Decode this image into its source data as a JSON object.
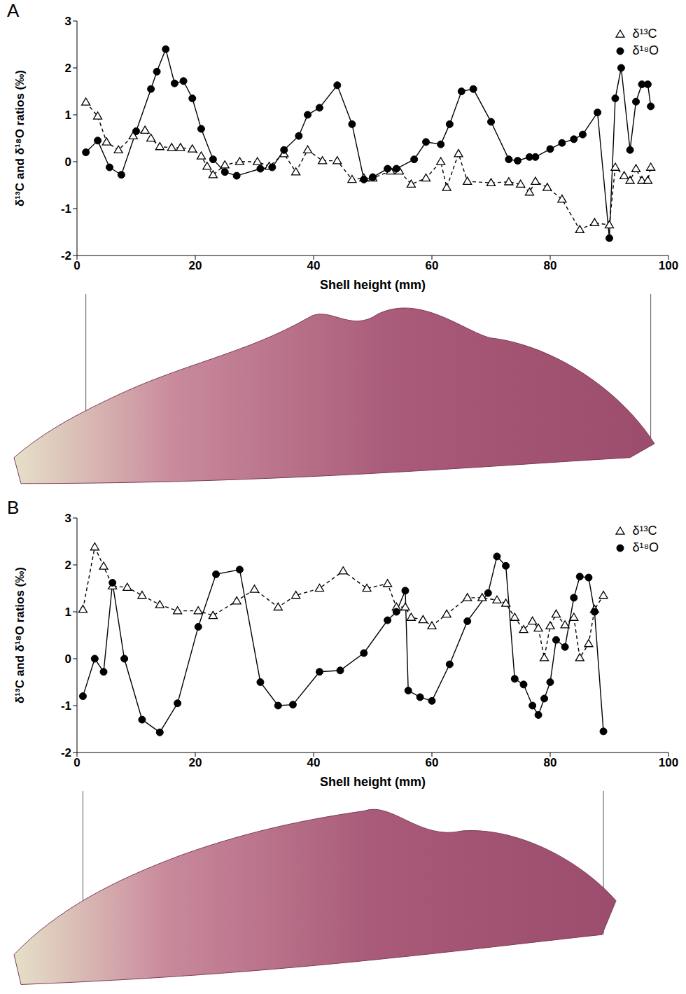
{
  "chart_data": [
    {
      "type": "line",
      "panel": "A",
      "x_label": "Shell height (mm)",
      "y_label": "δ¹³C and δ¹⁸O ratios (‰)",
      "xlim": [
        0,
        100
      ],
      "xticks": [
        0,
        20,
        40,
        60,
        80,
        100
      ],
      "ylim": [
        -2,
        3
      ],
      "yticks": [
        -2,
        -1,
        0,
        1,
        2,
        3
      ],
      "legend": "upper right",
      "series": [
        {
          "name": "δ¹³C",
          "color": "#000000",
          "marker": "open_triangle",
          "line_style": "dashed",
          "x": [
            1.5,
            3.5,
            5,
            7,
            9.5,
            11.5,
            12.5,
            14,
            16,
            17.5,
            19.5,
            21,
            22,
            23,
            25,
            27.5,
            30.5,
            32.5,
            35,
            37,
            39,
            41.5,
            44,
            46.5,
            48.5,
            50,
            53,
            54.5,
            56.5,
            59,
            61.5,
            62.5,
            64.5,
            66,
            70,
            73,
            75,
            76.5,
            77.5,
            79.5,
            82,
            85,
            87.5,
            90,
            91,
            92.5,
            93.5,
            94.5,
            95.5,
            96.5,
            97
          ],
          "values": [
            1.27,
            0.97,
            0.42,
            0.25,
            0.55,
            0.67,
            0.5,
            0.32,
            0.3,
            0.3,
            0.27,
            0.12,
            -0.1,
            -0.28,
            -0.07,
            0.0,
            0.0,
            -0.1,
            0.17,
            -0.22,
            0.25,
            0.02,
            0.02,
            -0.38,
            -0.35,
            -0.35,
            -0.2,
            -0.2,
            -0.48,
            -0.35,
            0.0,
            -0.55,
            0.17,
            -0.42,
            -0.45,
            -0.43,
            -0.48,
            -0.65,
            -0.42,
            -0.55,
            -0.8,
            -1.45,
            -1.3,
            -1.35,
            -0.12,
            -0.3,
            -0.4,
            -0.15,
            -0.4,
            -0.4,
            -0.12
          ]
        },
        {
          "name": "δ¹⁸O",
          "color": "#000000",
          "marker": "circle",
          "line_style": "solid",
          "x": [
            1.5,
            3.5,
            5.5,
            7.5,
            10,
            12.5,
            13.5,
            15,
            16.5,
            18,
            19.5,
            21,
            23,
            25,
            27,
            31,
            33,
            35,
            37.5,
            39,
            41,
            44,
            46.5,
            48.5,
            50,
            52.5,
            54,
            57,
            59,
            61.5,
            63,
            65,
            67,
            70,
            73,
            74.5,
            76.5,
            77.5,
            80,
            82,
            84,
            85.5,
            88,
            90,
            91,
            92,
            93.5,
            94.5,
            95.5,
            96.5,
            97
          ],
          "values": [
            0.2,
            0.45,
            -0.12,
            -0.28,
            0.65,
            1.55,
            1.92,
            2.4,
            1.67,
            1.72,
            1.35,
            0.7,
            0.05,
            -0.22,
            -0.3,
            -0.15,
            -0.12,
            0.25,
            0.55,
            1.0,
            1.15,
            1.63,
            0.8,
            -0.38,
            -0.33,
            -0.15,
            -0.15,
            0.05,
            0.42,
            0.37,
            0.8,
            1.5,
            1.55,
            0.85,
            0.05,
            0.02,
            0.1,
            0.1,
            0.27,
            0.4,
            0.48,
            0.58,
            1.05,
            -1.63,
            1.35,
            2.0,
            0.25,
            1.28,
            1.65,
            1.65,
            1.18
          ]
        }
      ]
    },
    {
      "type": "line",
      "panel": "B",
      "x_label": "Shell height (mm)",
      "y_label": "δ¹³C and δ¹⁸O ratios (‰)",
      "xlim": [
        0,
        100
      ],
      "xticks": [
        0,
        20,
        40,
        60,
        80,
        100
      ],
      "ylim": [
        -2,
        3
      ],
      "yticks": [
        -2,
        -1,
        0,
        1,
        2,
        3
      ],
      "legend": "upper right",
      "series": [
        {
          "name": "δ¹³C",
          "color": "#000000",
          "marker": "open_triangle",
          "line_style": "dashed",
          "x": [
            1,
            3,
            4.5,
            6,
            8.5,
            11,
            14,
            17,
            20.5,
            23,
            27,
            30,
            34,
            37,
            41,
            45,
            49,
            52.5,
            54,
            55.5,
            56.5,
            58.5,
            60,
            62.5,
            66,
            68.5,
            71,
            72.5,
            74,
            75.5,
            77,
            78,
            79,
            80,
            81,
            82.5,
            84,
            85,
            86.5,
            87.5,
            89
          ],
          "values": [
            1.05,
            2.38,
            1.97,
            1.55,
            1.52,
            1.35,
            1.15,
            1.02,
            1.02,
            0.92,
            1.23,
            1.48,
            1.1,
            1.35,
            1.5,
            1.87,
            1.5,
            1.6,
            1.1,
            1.1,
            0.88,
            0.83,
            0.7,
            0.95,
            1.3,
            1.3,
            1.25,
            1.18,
            0.88,
            0.62,
            0.8,
            0.65,
            0.02,
            0.7,
            0.95,
            0.72,
            0.88,
            0.02,
            0.32,
            1.05,
            1.35
          ]
        },
        {
          "name": "δ¹⁸O",
          "color": "#000000",
          "marker": "circle",
          "line_style": "solid",
          "x": [
            1,
            3,
            4.5,
            6,
            8,
            11,
            14,
            17,
            20.5,
            23.5,
            27.5,
            31,
            34,
            36.5,
            41,
            44.5,
            48.5,
            52.5,
            54,
            55.5,
            56,
            58,
            60,
            63,
            66,
            69.5,
            71,
            72.5,
            74,
            75.5,
            77,
            78,
            79,
            80,
            81,
            82.5,
            84,
            85,
            86.5,
            87.5,
            89
          ],
          "values": [
            -0.8,
            0.0,
            -0.28,
            1.62,
            0.0,
            -1.3,
            -1.57,
            -0.95,
            0.68,
            1.8,
            1.9,
            -0.5,
            -1.0,
            -0.98,
            -0.28,
            -0.25,
            0.12,
            0.82,
            1.0,
            1.45,
            -0.68,
            -0.82,
            -0.9,
            -0.12,
            0.8,
            1.4,
            2.18,
            1.98,
            -0.43,
            -0.55,
            -1.0,
            -1.2,
            -0.85,
            -0.5,
            0.4,
            0.25,
            1.3,
            1.75,
            1.73,
            1.0,
            -1.55
          ]
        }
      ]
    }
  ]
}
